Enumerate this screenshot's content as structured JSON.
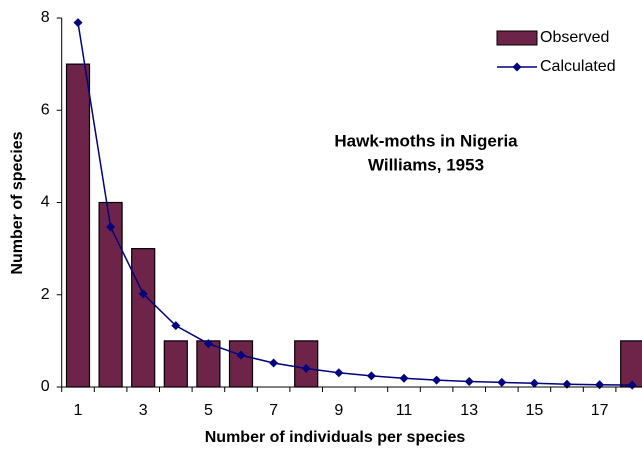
{
  "chart_data": {
    "type": "bar-line",
    "annotation": [
      "Hawk-moths in Nigeria",
      "Williams, 1953"
    ],
    "x_label": "Number of individuals per species",
    "y_label": "Number of species",
    "categories": [
      "1",
      null,
      "3",
      null,
      "5",
      null,
      "7",
      null,
      "9",
      null,
      "11",
      null,
      "13",
      null,
      "15",
      null,
      "17",
      null
    ],
    "series": [
      {
        "name": "Observed",
        "type": "bar",
        "color": "#6e2448",
        "values": [
          7,
          4,
          3,
          1,
          1,
          1,
          0,
          1,
          0,
          0,
          0,
          0,
          0,
          0,
          0,
          0,
          0,
          1
        ]
      },
      {
        "name": "Calculated",
        "type": "line",
        "color": "#000080",
        "values": [
          7.9,
          3.47,
          2.02,
          1.33,
          0.94,
          0.69,
          0.52,
          0.4,
          0.31,
          0.24,
          0.19,
          0.15,
          0.12,
          0.1,
          0.08,
          0.06,
          0.05,
          0.04
        ]
      }
    ],
    "ylim": [
      0,
      8
    ],
    "yticks": [
      0,
      2,
      4,
      6,
      8
    ],
    "grid": false,
    "legend": "top-right"
  }
}
